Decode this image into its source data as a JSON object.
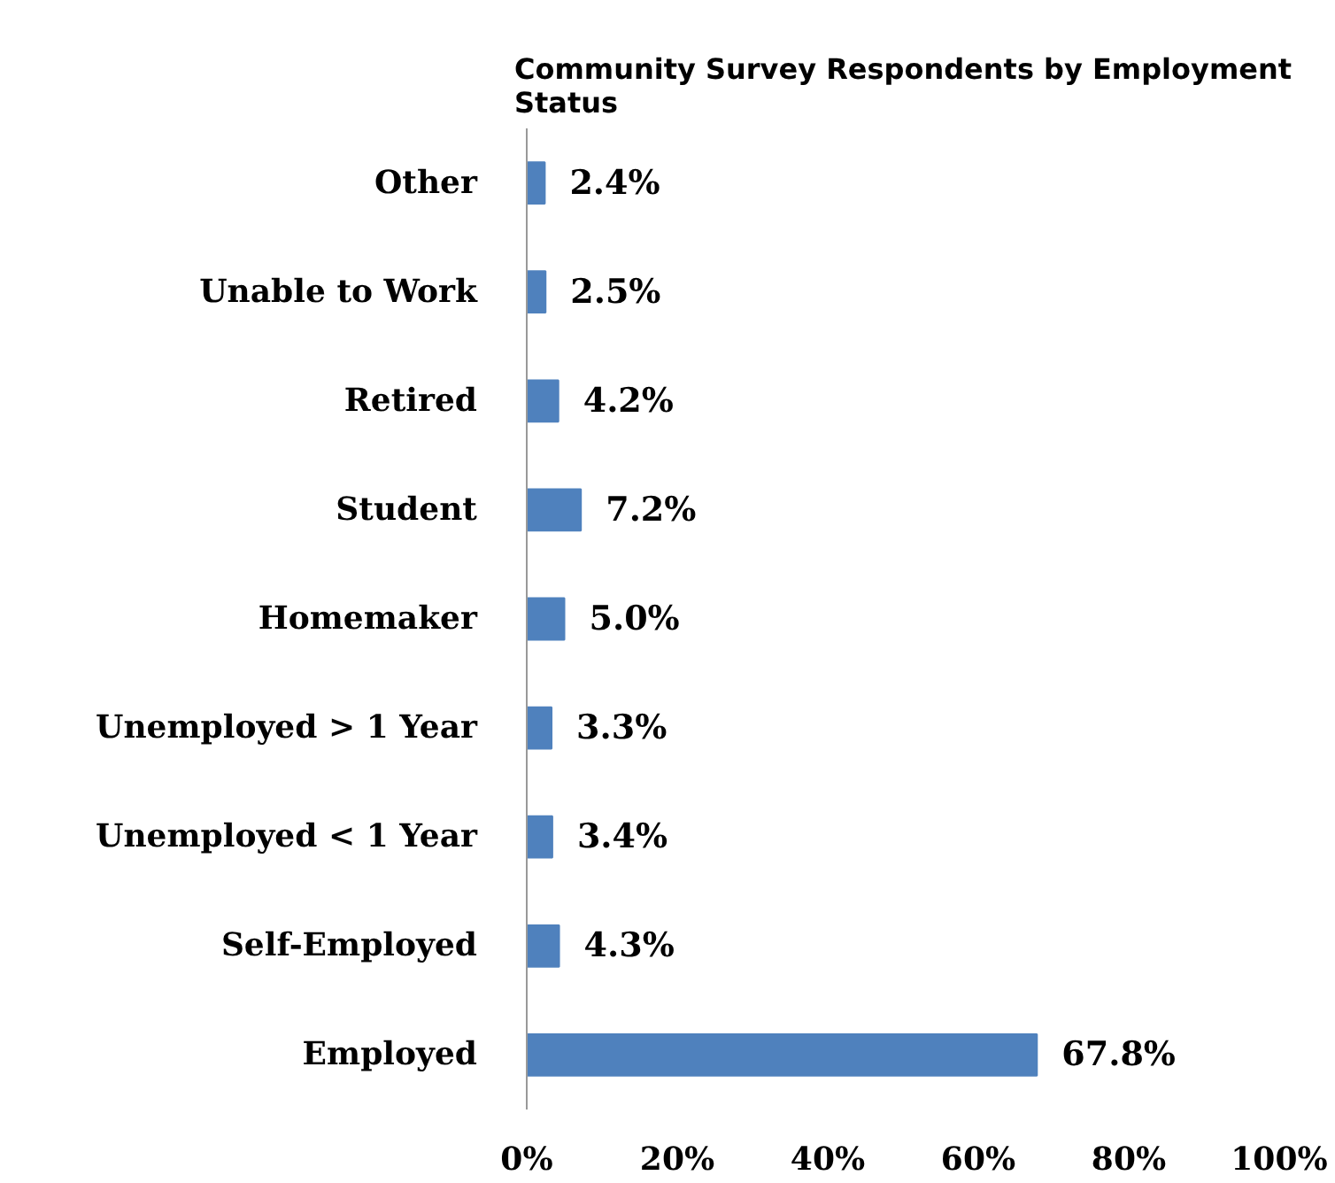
{
  "chart_data": {
    "type": "bar",
    "orientation": "horizontal",
    "title": "Community Survey Respondents by Employment\nStatus",
    "categories": [
      "Other",
      "Unable to Work",
      "Retired",
      "Student",
      "Homemaker",
      "Unemployed > 1 Year",
      "Unemployed < 1 Year",
      "Self-Employed",
      "Employed"
    ],
    "values": [
      2.4,
      2.5,
      4.2,
      7.2,
      5.0,
      3.3,
      3.4,
      4.3,
      67.8
    ],
    "value_labels": [
      "2.4%",
      "2.5%",
      "4.2%",
      "7.2%",
      "5.0%",
      "3.3%",
      "3.4%",
      "4.3%",
      "67.8%"
    ],
    "color": "#4f81bd",
    "xlim": [
      0,
      100
    ],
    "xticks": [
      {
        "value": 0,
        "label": "0%"
      },
      {
        "value": 20,
        "label": "20%"
      },
      {
        "value": 40,
        "label": "40%"
      },
      {
        "value": 60,
        "label": "60%"
      },
      {
        "value": 80,
        "label": "80%"
      },
      {
        "value": 100,
        "label": "100%"
      }
    ],
    "grid": false
  }
}
